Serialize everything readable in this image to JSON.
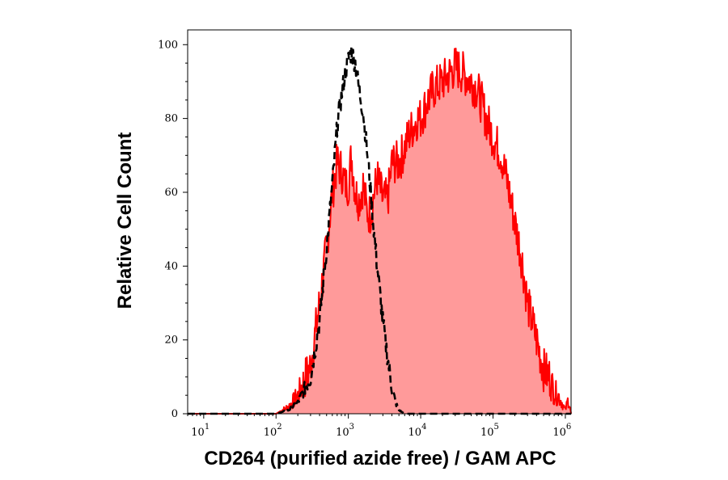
{
  "chart_data": {
    "type": "area",
    "title": "",
    "xlabel": "CD264 (purified azide free) / GAM APC",
    "ylabel": "Relative Cell Count",
    "x_scale": "log",
    "xlim": [
      6,
      1200000
    ],
    "ylim": [
      0,
      104
    ],
    "x_ticks": [
      {
        "value": 10,
        "base": "10",
        "exp": "1"
      },
      {
        "value": 100,
        "base": "10",
        "exp": "2"
      },
      {
        "value": 1000,
        "base": "10",
        "exp": "3"
      },
      {
        "value": 10000,
        "base": "10",
        "exp": "4"
      },
      {
        "value": 100000,
        "base": "10",
        "exp": "5"
      },
      {
        "value": 1000000,
        "base": "10",
        "exp": "6"
      }
    ],
    "y_ticks": [
      0,
      20,
      40,
      60,
      80,
      100
    ],
    "y_tick_labels": [
      "0",
      "20",
      "40",
      "60",
      "80",
      "100"
    ],
    "grid": false,
    "legend": "none",
    "series": [
      {
        "style": "filled-red",
        "color": "#ff0000",
        "fill": "#ff9a9a",
        "x": [
          6,
          100,
          150,
          200,
          300,
          400,
          500,
          600,
          700,
          800,
          900,
          1000,
          1100,
          1250,
          1400,
          1600,
          1800,
          2000,
          2500,
          3000,
          3500,
          4000,
          5000,
          6000,
          7000,
          8000,
          9000,
          10000,
          12000,
          15000,
          20000,
          25000,
          30000,
          35000,
          40000,
          50000,
          60000,
          70000,
          80000,
          100000,
          130000,
          160000,
          200000,
          250000,
          300000,
          400000,
          500000,
          600000,
          700000,
          800000,
          900000,
          1000000,
          1100000,
          1200000
        ],
        "y": [
          0,
          0,
          2,
          5,
          13,
          30,
          45,
          60,
          68,
          66,
          62,
          62,
          70,
          60,
          58,
          62,
          55,
          54,
          64,
          58,
          58,
          68,
          68,
          72,
          76,
          78,
          80,
          80,
          84,
          88,
          90,
          92,
          94,
          93,
          92,
          90,
          88,
          84,
          80,
          75,
          70,
          62,
          52,
          42,
          30,
          20,
          12,
          10,
          6,
          5,
          3,
          1,
          4,
          0
        ]
      },
      {
        "style": "dashed-black",
        "color": "#000000",
        "x": [
          6,
          100,
          150,
          200,
          300,
          400,
          500,
          600,
          700,
          800,
          900,
          1000,
          1100,
          1250,
          1400,
          1600,
          1800,
          2000,
          2200,
          2500,
          3000,
          3500,
          4000,
          4500,
          5000,
          6000,
          7000,
          8000,
          10000,
          20000,
          100000,
          1200000
        ],
        "y": [
          0,
          0,
          1,
          3,
          10,
          25,
          45,
          62,
          78,
          86,
          92,
          96,
          98,
          95,
          88,
          82,
          72,
          62,
          52,
          40,
          25,
          15,
          7,
          3,
          1,
          0,
          0,
          0,
          0,
          0,
          0,
          0
        ]
      }
    ]
  }
}
